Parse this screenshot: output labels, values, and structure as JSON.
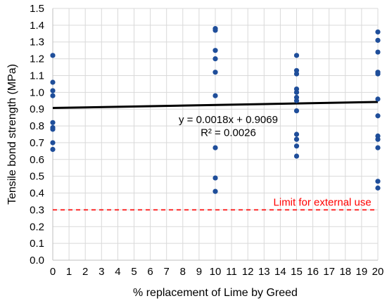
{
  "chart_data": {
    "type": "scatter",
    "title": "",
    "xlabel": "% replacement of Lime by Greed",
    "ylabel": "Tensile bond strength (MPa)",
    "xlim": [
      0,
      20
    ],
    "ylim": [
      0,
      1.5
    ],
    "x_ticks": [
      "0",
      "1",
      "2",
      "3",
      "4",
      "5",
      "6",
      "7",
      "8",
      "9",
      "10",
      "11",
      "12",
      "13",
      "14",
      "15",
      "16",
      "17",
      "18",
      "19",
      "20"
    ],
    "y_ticks": [
      "0.0",
      "0.1",
      "0.2",
      "0.3",
      "0.4",
      "0.5",
      "0.6",
      "0.7",
      "0.8",
      "0.9",
      "1.0",
      "1.1",
      "1.2",
      "1.3",
      "1.4",
      "1.5"
    ],
    "grid": true,
    "series": [
      {
        "marker_color": "#1f4e9a",
        "points": [
          {
            "x": 0,
            "y": 1.22
          },
          {
            "x": 0,
            "y": 1.06
          },
          {
            "x": 0,
            "y": 1.01
          },
          {
            "x": 0,
            "y": 0.98
          },
          {
            "x": 0,
            "y": 0.82
          },
          {
            "x": 0,
            "y": 0.79
          },
          {
            "x": 0,
            "y": 0.78
          },
          {
            "x": 0,
            "y": 0.7
          },
          {
            "x": 0,
            "y": 0.66
          },
          {
            "x": 10,
            "y": 1.38
          },
          {
            "x": 10,
            "y": 1.37
          },
          {
            "x": 10,
            "y": 1.25
          },
          {
            "x": 10,
            "y": 1.2
          },
          {
            "x": 10,
            "y": 1.12
          },
          {
            "x": 10,
            "y": 0.98
          },
          {
            "x": 10,
            "y": 0.67
          },
          {
            "x": 10,
            "y": 0.49
          },
          {
            "x": 10,
            "y": 0.41
          },
          {
            "x": 15,
            "y": 1.22
          },
          {
            "x": 15,
            "y": 1.13
          },
          {
            "x": 15,
            "y": 1.11
          },
          {
            "x": 15,
            "y": 1.02
          },
          {
            "x": 15,
            "y": 1.0
          },
          {
            "x": 15,
            "y": 0.97
          },
          {
            "x": 15,
            "y": 0.95
          },
          {
            "x": 15,
            "y": 0.89
          },
          {
            "x": 15,
            "y": 0.75
          },
          {
            "x": 15,
            "y": 0.72
          },
          {
            "x": 15,
            "y": 0.68
          },
          {
            "x": 15,
            "y": 0.62
          },
          {
            "x": 20,
            "y": 1.36
          },
          {
            "x": 20,
            "y": 1.31
          },
          {
            "x": 20,
            "y": 1.24
          },
          {
            "x": 20,
            "y": 1.12
          },
          {
            "x": 20,
            "y": 1.11
          },
          {
            "x": 20,
            "y": 0.96
          },
          {
            "x": 20,
            "y": 0.86
          },
          {
            "x": 20,
            "y": 0.74
          },
          {
            "x": 20,
            "y": 0.72
          },
          {
            "x": 20,
            "y": 0.67
          },
          {
            "x": 20,
            "y": 0.47
          },
          {
            "x": 20,
            "y": 0.43
          }
        ]
      }
    ],
    "trendline": {
      "color": "#000000",
      "slope": 0.0018,
      "intercept": 0.9069,
      "equation_text": "y = 0.0018x + 0.9069",
      "r2_text": "R² = 0.0026"
    },
    "reference_line": {
      "y": 0.3,
      "color": "#ff0000",
      "style": "dashed",
      "label": "Limit for external use"
    }
  }
}
